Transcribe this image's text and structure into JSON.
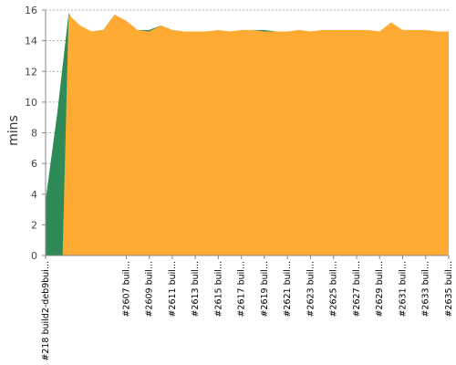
{
  "chart_data": {
    "type": "area",
    "ylabel": "mins",
    "xlabel": "",
    "ylim": [
      0,
      16
    ],
    "yticks": [
      "0",
      "2",
      "4",
      "6",
      "8",
      "10",
      "12",
      "14",
      "16"
    ],
    "grid": true,
    "x_categories": [
      "#218 build2-deb9bui...",
      "",
      "",
      "",
      "",
      "",
      "",
      "#2607 buil...",
      "",
      "#2609 buil...",
      "",
      "#2611 buil...",
      "",
      "#2613 buil...",
      "",
      "#2615 buil...",
      "",
      "#2617 buil...",
      "",
      "#2619 buil...",
      "",
      "#2621 buil...",
      "",
      "#2623 buil...",
      "",
      "#2625 buil...",
      "",
      "#2627 buil...",
      "",
      "#2629 buil...",
      "",
      "#2631 buil...",
      "",
      "#2633 buil...",
      "",
      "#2635 buil..."
    ],
    "series": [
      {
        "color": "#2e8b57",
        "values": [
          3.6,
          9.2,
          15.8,
          14.6,
          14.6,
          14.7,
          15.7,
          14.7,
          14.7,
          14.7,
          15.0,
          14.7,
          14.6,
          14.6,
          14.6,
          14.6,
          14.6,
          14.6,
          14.7,
          14.7,
          14.6,
          14.6,
          14.6,
          14.6,
          14.6,
          14.6,
          14.6,
          14.6,
          14.6,
          14.6,
          14.6,
          14.6,
          14.6,
          14.6,
          14.6,
          14.6
        ]
      },
      {
        "color": "#ffab33",
        "values": [
          0,
          0,
          15.7,
          15.0,
          14.6,
          14.7,
          15.7,
          15.3,
          14.7,
          14.6,
          15.0,
          14.7,
          14.6,
          14.6,
          14.6,
          14.7,
          14.6,
          14.7,
          14.7,
          14.6,
          14.6,
          14.6,
          14.7,
          14.6,
          14.7,
          14.7,
          14.7,
          14.7,
          14.7,
          14.6,
          15.2,
          14.7,
          14.7,
          14.7,
          14.6,
          14.6
        ]
      }
    ]
  },
  "colors": {
    "failed_series": "#2e8b57",
    "main_series": "#ffab33",
    "gridline": "#999999",
    "axis": "#888888"
  }
}
